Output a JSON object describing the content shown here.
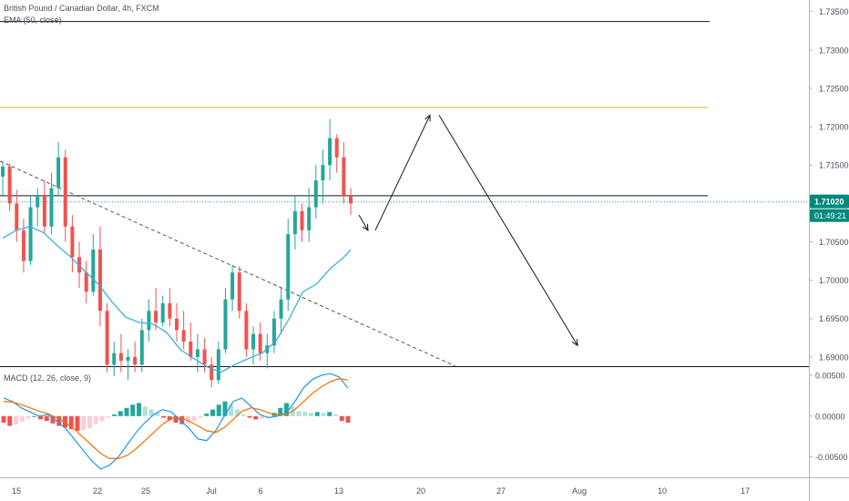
{
  "header": {
    "title": "British Pound / Canadian Dollar, 4h, FXCM",
    "ema_label": "EMA (50, close)",
    "macd_label": "MACD (12, 26, close, 9)"
  },
  "price_badge": {
    "price": "1.71020",
    "countdown": "01:49:21",
    "color": "#00897b"
  },
  "colors": {
    "up": "#26a69a",
    "down": "#ef5350",
    "ema": "#3bb3d6",
    "macd_line": "#2196f3",
    "signal_line": "#ff6d00",
    "resistance": "#f0a830",
    "grid": "#e0e3eb"
  },
  "chart_data": [
    {
      "type": "candlestick",
      "title": "British Pound / Canadian Dollar, 4h, FXCM",
      "y_axis_ticks": [
        "1.73500",
        "1.73000",
        "1.72500",
        "1.72000",
        "1.71500",
        "1.71000",
        "1.70500",
        "1.70000",
        "1.69500",
        "1.69000"
      ],
      "x_axis_ticks": [
        "15",
        "22",
        "25",
        "Jul",
        "6",
        "13",
        "20",
        "27",
        "Aug",
        "10",
        "17"
      ],
      "ylim": [
        1.6888,
        1.7365
      ],
      "horizontal_levels": [
        {
          "price": 1.7337,
          "color": "#131722"
        },
        {
          "price": 1.7225,
          "color": "#f0a830"
        },
        {
          "price": 1.711,
          "color": "#131722"
        }
      ],
      "last_price": 1.7102,
      "ema_50": [
        [
          0,
          1.7055
        ],
        [
          10,
          1.7065
        ],
        [
          20,
          1.707
        ],
        [
          30,
          1.7062
        ],
        [
          40,
          1.7045
        ],
        [
          50,
          1.703
        ],
        [
          60,
          1.7012
        ],
        [
          70,
          1.6995
        ],
        [
          80,
          1.6972
        ],
        [
          90,
          1.6952
        ],
        [
          100,
          1.6945
        ],
        [
          110,
          1.6943
        ],
        [
          120,
          1.6932
        ],
        [
          130,
          1.691
        ],
        [
          140,
          1.6898
        ],
        [
          150,
          1.6887
        ],
        [
          160,
          1.688
        ],
        [
          165,
          1.6885
        ],
        [
          170,
          1.689
        ],
        [
          180,
          1.6898
        ],
        [
          190,
          1.6905
        ],
        [
          200,
          1.692
        ],
        [
          210,
          1.695
        ],
        [
          220,
          1.6985
        ],
        [
          230,
          1.6995
        ],
        [
          240,
          1.7015
        ],
        [
          250,
          1.703
        ],
        [
          255,
          1.704
        ]
      ],
      "candles": [
        [
          1.7135,
          1.7155,
          1.711,
          1.7148
        ],
        [
          1.7148,
          1.7152,
          1.709,
          1.71
        ],
        [
          1.71,
          1.7118,
          1.705,
          1.7065
        ],
        [
          1.7065,
          1.708,
          1.701,
          1.7025
        ],
        [
          1.7025,
          1.711,
          1.702,
          1.7095
        ],
        [
          1.7095,
          1.712,
          1.707,
          1.711
        ],
        [
          1.711,
          1.713,
          1.706,
          1.707
        ],
        [
          1.707,
          1.714,
          1.706,
          1.712
        ],
        [
          1.712,
          1.718,
          1.711,
          1.716
        ],
        [
          1.716,
          1.717,
          1.705,
          1.707
        ],
        [
          1.707,
          1.7085,
          1.701,
          1.703
        ],
        [
          1.703,
          1.705,
          1.699,
          1.701
        ],
        [
          1.701,
          1.7025,
          1.697,
          1.6985
        ],
        [
          1.6985,
          1.706,
          1.698,
          1.704
        ],
        [
          1.704,
          1.707,
          1.694,
          1.696
        ],
        [
          1.696,
          1.697,
          1.688,
          1.689
        ],
        [
          1.689,
          1.692,
          1.6875,
          1.6905
        ],
        [
          1.6905,
          1.693,
          1.688,
          1.6895
        ],
        [
          1.6895,
          1.691,
          1.687,
          1.69
        ],
        [
          1.69,
          1.692,
          1.688,
          1.689
        ],
        [
          1.689,
          1.695,
          1.688,
          1.6935
        ],
        [
          1.6935,
          1.6975,
          1.692,
          1.696
        ],
        [
          1.696,
          1.699,
          1.6935,
          1.6945
        ],
        [
          1.6945,
          1.698,
          1.694,
          1.697
        ],
        [
          1.697,
          1.699,
          1.694,
          1.695
        ],
        [
          1.695,
          1.697,
          1.692,
          1.6935
        ],
        [
          1.6935,
          1.696,
          1.691,
          1.692
        ],
        [
          1.692,
          1.6945,
          1.6895,
          1.69
        ],
        [
          1.69,
          1.693,
          1.688,
          1.691
        ],
        [
          1.691,
          1.6925,
          1.688,
          1.689
        ],
        [
          1.689,
          1.69,
          1.686,
          1.687
        ],
        [
          1.687,
          1.692,
          1.6865,
          1.691
        ],
        [
          1.691,
          1.699,
          1.6905,
          1.6975
        ],
        [
          1.6975,
          1.702,
          1.696,
          1.701
        ],
        [
          1.701,
          1.7018,
          1.695,
          1.696
        ],
        [
          1.696,
          1.697,
          1.69,
          1.691
        ],
        [
          1.691,
          1.694,
          1.689,
          1.693
        ],
        [
          1.693,
          1.6945,
          1.6895,
          1.6905
        ],
        [
          1.6905,
          1.693,
          1.6885,
          1.6915
        ],
        [
          1.6915,
          1.696,
          1.6905,
          1.695
        ],
        [
          1.695,
          1.699,
          1.693,
          1.6975
        ],
        [
          1.6975,
          1.708,
          1.696,
          1.706
        ],
        [
          1.706,
          1.711,
          1.704,
          1.709
        ],
        [
          1.709,
          1.71,
          1.705,
          1.7065
        ],
        [
          1.7065,
          1.712,
          1.705,
          1.7095
        ],
        [
          1.7095,
          1.715,
          1.708,
          1.713
        ],
        [
          1.713,
          1.717,
          1.71,
          1.715
        ],
        [
          1.715,
          1.721,
          1.713,
          1.7185
        ],
        [
          1.7185,
          1.719,
          1.714,
          1.716
        ],
        [
          1.716,
          1.718,
          1.71,
          1.711
        ],
        [
          1.711,
          1.712,
          1.7085,
          1.71
        ]
      ],
      "projection": [
        [
          1.7085,
          1.7065
        ],
        [
          1.7065,
          1.7215
        ],
        [
          1.7215,
          1.6915
        ]
      ]
    },
    {
      "type": "bar",
      "title": "MACD (12, 26, close, 9)",
      "y_axis_ticks": [
        "0.00500",
        "0.00000",
        "-0.00500"
      ],
      "ylim": [
        -0.0075,
        0.006
      ],
      "histogram": [
        -0.0008,
        -0.0012,
        -0.001,
        -0.0007,
        -0.0003,
        0.0,
        -0.0004,
        -0.0006,
        -0.0009,
        -0.0012,
        -0.0014,
        -0.0016,
        -0.0018,
        -0.0017,
        -0.0015,
        -0.001,
        -0.0006,
        -0.0002,
        0.0002,
        0.0006,
        0.001,
        0.0014,
        0.0016,
        0.0012,
        0.0008,
        0.0004,
        -0.0002,
        -0.0005,
        -0.0008,
        -0.001,
        -0.0009,
        -0.0006,
        -0.0002,
        0.0003,
        0.0008,
        0.0014,
        0.0018,
        0.0014,
        0.0008,
        0.0002,
        -0.0002,
        -0.0004,
        -0.0003,
        -0.0001,
        0.0004,
        0.001,
        0.0016,
        0.0012,
        0.0006,
        0.0005,
        0.0004,
        0.0005,
        0.0004,
        0.0005,
        0.0002,
        -0.0006,
        -0.0008
      ],
      "macd": [
        0.0022,
        0.0018,
        0.001,
        0.0005,
        0.0,
        0.0002,
        -0.0006,
        -0.0015,
        -0.0028,
        -0.0042,
        -0.0055,
        -0.0065,
        -0.006,
        -0.005,
        -0.0035,
        -0.002,
        -0.0008,
        0.0002,
        0.0008,
        0.0005,
        -0.0005,
        -0.0015,
        -0.0028,
        -0.003,
        -0.0018,
        0.0,
        0.0018,
        0.0022,
        0.0012,
        0.0002,
        -0.0002,
        0.0,
        0.0004,
        0.0018,
        0.0035,
        0.0045,
        0.005,
        0.0052,
        0.0048,
        0.0034
      ],
      "signal": [
        0.0018,
        0.0017,
        0.0014,
        0.001,
        0.0006,
        0.0003,
        -0.0002,
        -0.0008,
        -0.0016,
        -0.0026,
        -0.0036,
        -0.0046,
        -0.0052,
        -0.0052,
        -0.0048,
        -0.004,
        -0.003,
        -0.002,
        -0.001,
        -0.0003,
        -0.0002,
        -0.0006,
        -0.0012,
        -0.0018,
        -0.002,
        -0.0014,
        -0.0004,
        0.0006,
        0.001,
        0.0008,
        0.0004,
        0.0002,
        0.0002,
        0.0008,
        0.0018,
        0.0028,
        0.0036,
        0.0042,
        0.0046,
        0.0044
      ]
    }
  ]
}
